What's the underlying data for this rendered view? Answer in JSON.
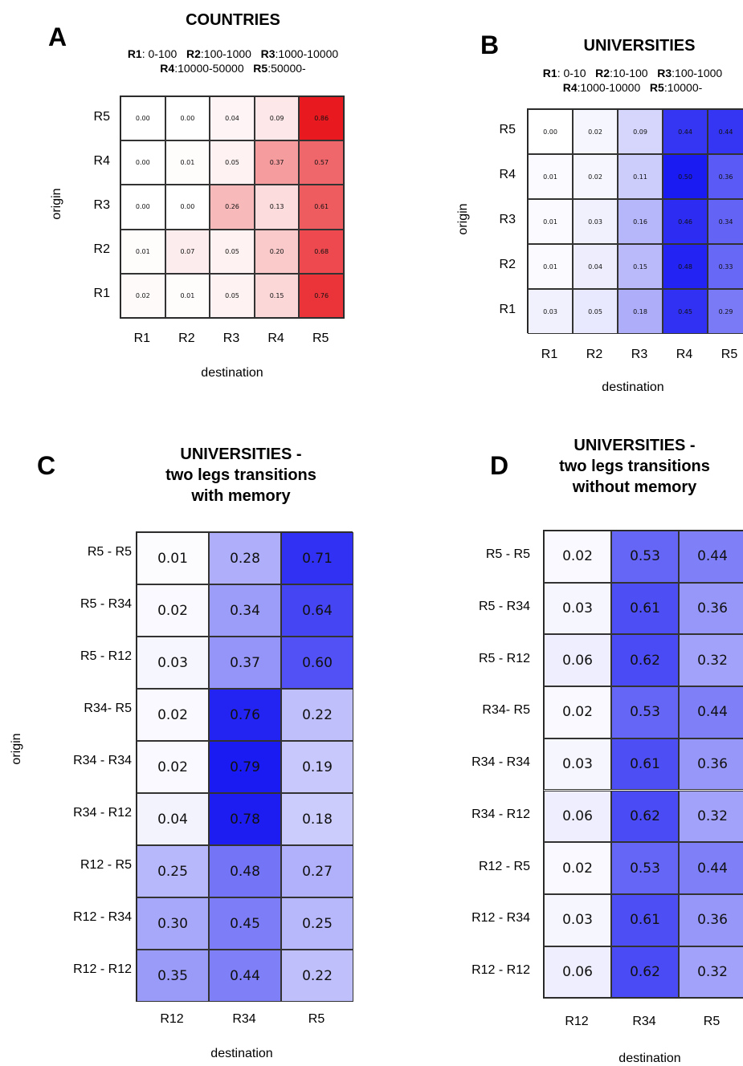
{
  "chart_data": [
    {
      "panel": "A",
      "type": "heatmap",
      "title": "COUNTRIES",
      "legend_lines": [
        [
          {
            "b": "R1",
            "t": ": 0-100"
          },
          {
            "b": "R2",
            "t": ":100-1000"
          },
          {
            "b": "R3",
            "t": ":1000-10000"
          }
        ],
        [
          {
            "b": "R4",
            "t": ":10000-50000"
          },
          {
            "b": "R5",
            "t": ":50000-"
          }
        ]
      ],
      "xlabel": "destination",
      "ylabel": "origin",
      "x_categories": [
        "R1",
        "R2",
        "R3",
        "R4",
        "R5"
      ],
      "y_categories": [
        "R5",
        "R4",
        "R3",
        "R2",
        "R1"
      ],
      "values": [
        [
          0.0,
          0.0,
          0.04,
          0.09,
          0.86
        ],
        [
          0.0,
          0.01,
          0.05,
          0.37,
          0.57
        ],
        [
          0.0,
          0.0,
          0.26,
          0.13,
          0.61
        ],
        [
          0.01,
          0.07,
          0.05,
          0.2,
          0.68
        ],
        [
          0.02,
          0.01,
          0.05,
          0.15,
          0.76
        ]
      ],
      "value_labels": [
        [
          "0.00",
          "0.00",
          "0.04",
          "0.09",
          "0.86"
        ],
        [
          "0.00",
          "0.01",
          "0.05",
          "0.37",
          "0.57"
        ],
        [
          "0.00",
          "0.00",
          "0.26",
          "0.13",
          "0.61"
        ],
        [
          "0.01",
          "0.07",
          "0.05",
          "0.20",
          "0.68"
        ],
        [
          "0.02",
          "0.01",
          "0.05",
          "0.15",
          "0.76"
        ]
      ],
      "color": "#e8191f"
    },
    {
      "panel": "B",
      "type": "heatmap",
      "title": "UNIVERSITIES",
      "legend_lines": [
        [
          {
            "b": "R1",
            "t": ": 0-10"
          },
          {
            "b": "R2",
            "t": ":10-100"
          },
          {
            "b": "R3",
            "t": ":100-1000"
          }
        ],
        [
          {
            "b": "R4",
            "t": ":1000-10000"
          },
          {
            "b": "R5",
            "t": ":10000-"
          }
        ]
      ],
      "xlabel": "destination",
      "ylabel": "origin",
      "x_categories": [
        "R1",
        "R2",
        "R3",
        "R4",
        "R5"
      ],
      "y_categories": [
        "R5",
        "R4",
        "R3",
        "R2",
        "R1"
      ],
      "values": [
        [
          0.0,
          0.02,
          0.09,
          0.44,
          0.44
        ],
        [
          0.01,
          0.02,
          0.11,
          0.5,
          0.36
        ],
        [
          0.01,
          0.03,
          0.16,
          0.46,
          0.34
        ],
        [
          0.01,
          0.04,
          0.15,
          0.48,
          0.33
        ],
        [
          0.03,
          0.05,
          0.18,
          0.45,
          0.29
        ]
      ],
      "value_labels": [
        [
          "0.00",
          "0.02",
          "0.09",
          "0.44",
          "0.44"
        ],
        [
          "0.01",
          "0.02",
          "0.11",
          "0.50",
          "0.36"
        ],
        [
          "0.01",
          "0.03",
          "0.16",
          "0.46",
          "0.34"
        ],
        [
          "0.01",
          "0.04",
          "0.15",
          "0.48",
          "0.33"
        ],
        [
          "0.03",
          "0.05",
          "0.18",
          "0.45",
          "0.29"
        ]
      ],
      "color": "#1a1af2"
    },
    {
      "panel": "C",
      "type": "heatmap",
      "title_lines": [
        "UNIVERSITIES -",
        "two legs transitions",
        "with memory"
      ],
      "xlabel": "destination",
      "ylabel": "origin",
      "x_categories": [
        "R12",
        "R34",
        "R5"
      ],
      "y_categories": [
        "R5 - R5",
        "R5 - R34",
        "R5 - R12",
        "R34- R5",
        "R34 - R34",
        "R34 - R12",
        "R12 - R5",
        "R12 - R34",
        "R12 - R12"
      ],
      "values": [
        [
          0.01,
          0.28,
          0.71
        ],
        [
          0.02,
          0.34,
          0.64
        ],
        [
          0.03,
          0.37,
          0.6
        ],
        [
          0.02,
          0.76,
          0.22
        ],
        [
          0.02,
          0.79,
          0.19
        ],
        [
          0.04,
          0.78,
          0.18
        ],
        [
          0.25,
          0.48,
          0.27
        ],
        [
          0.3,
          0.45,
          0.25
        ],
        [
          0.35,
          0.44,
          0.22
        ]
      ],
      "value_labels": [
        [
          "0.01",
          "0.28",
          "0.71"
        ],
        [
          "0.02",
          "0.34",
          "0.64"
        ],
        [
          "0.03",
          "0.37",
          "0.60"
        ],
        [
          "0.02",
          "0.76",
          "0.22"
        ],
        [
          "0.02",
          "0.79",
          "0.19"
        ],
        [
          "0.04",
          "0.78",
          "0.18"
        ],
        [
          "0.25",
          "0.48",
          "0.27"
        ],
        [
          "0.30",
          "0.45",
          "0.25"
        ],
        [
          "0.35",
          "0.44",
          "0.22"
        ]
      ],
      "color": "#1a1af2"
    },
    {
      "panel": "D",
      "type": "heatmap",
      "title_lines": [
        "UNIVERSITIES -",
        "two legs transitions",
        "without memory"
      ],
      "xlabel": "destination",
      "ylabel": "",
      "x_categories": [
        "R12",
        "R34",
        "R5"
      ],
      "y_categories": [
        "R5 - R5",
        "R5 - R34",
        "R5 - R12",
        "R34- R5",
        "R34 - R34",
        "R34 - R12",
        "R12 - R5",
        "R12 - R34",
        "R12 - R12"
      ],
      "values": [
        [
          0.02,
          0.53,
          0.44
        ],
        [
          0.03,
          0.61,
          0.36
        ],
        [
          0.06,
          0.62,
          0.32
        ],
        [
          0.02,
          0.53,
          0.44
        ],
        [
          0.03,
          0.61,
          0.36
        ],
        [
          0.06,
          0.62,
          0.32
        ],
        [
          0.02,
          0.53,
          0.44
        ],
        [
          0.03,
          0.61,
          0.36
        ],
        [
          0.06,
          0.62,
          0.32
        ]
      ],
      "value_labels": [
        [
          "0.02",
          "0.53",
          "0.44"
        ],
        [
          "0.03",
          "0.61",
          "0.36"
        ],
        [
          "0.06",
          "0.62",
          "0.32"
        ],
        [
          "0.02",
          "0.53",
          "0.44"
        ],
        [
          "0.03",
          "0.61",
          "0.36"
        ],
        [
          "0.06",
          "0.62",
          "0.32"
        ],
        [
          "0.02",
          "0.53",
          "0.44"
        ],
        [
          "0.03",
          "0.61",
          "0.36"
        ],
        [
          "0.06",
          "0.62",
          "0.32"
        ]
      ],
      "color": "#1a1af2"
    }
  ]
}
